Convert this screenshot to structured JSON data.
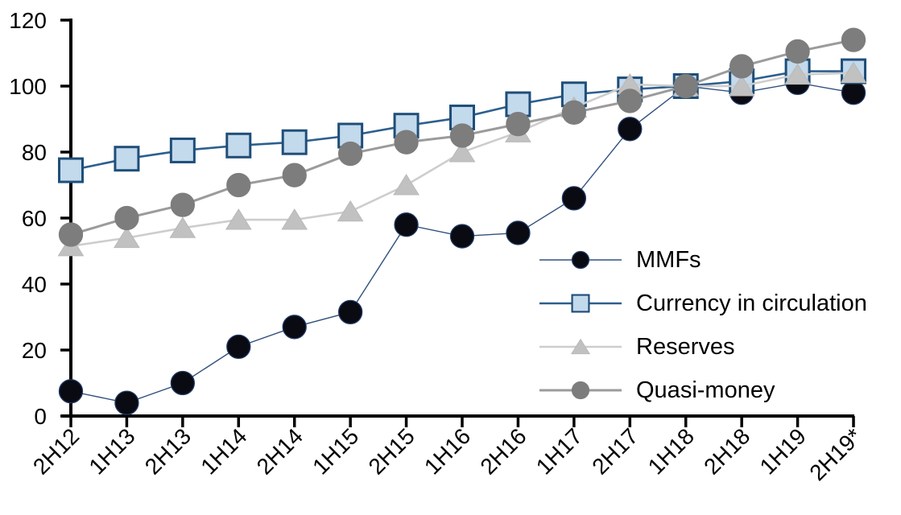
{
  "chart_data": {
    "type": "line",
    "title": "",
    "xlabel": "",
    "ylabel": "",
    "categories": [
      "2H12",
      "1H13",
      "2H13",
      "1H14",
      "2H14",
      "1H15",
      "2H15",
      "1H16",
      "2H16",
      "1H17",
      "2H17",
      "1H18",
      "2H18",
      "1H19",
      "2H19*"
    ],
    "series": [
      {
        "name": "MMFs",
        "marker": "circle",
        "marker_fill": "#0a0a12",
        "marker_stroke": "#1f3864",
        "line_color": "#31517e",
        "line_width": 1.4,
        "values": [
          7.5,
          4,
          10,
          21,
          27,
          31.5,
          58,
          54.5,
          55.5,
          66,
          87,
          100,
          98,
          101,
          98
        ]
      },
      {
        "name": "Currency in circulation",
        "marker": "square",
        "marker_fill": "#c3d9ec",
        "marker_stroke": "#1f4e79",
        "line_color": "#2d5f8e",
        "line_width": 2.6,
        "values": [
          74.5,
          78,
          80.5,
          82,
          83,
          85,
          88,
          90.5,
          94.5,
          97.5,
          99,
          100,
          101.5,
          104.5,
          104.5
        ]
      },
      {
        "name": "Reserves",
        "marker": "triangle",
        "marker_fill": "#c1c1c1",
        "marker_stroke": "#b9b9b9",
        "line_color": "#cdcdcd",
        "line_width": 2.6,
        "values": [
          51.5,
          54,
          57,
          59.5,
          59.5,
          62,
          70,
          80,
          86,
          93.5,
          100.5,
          100,
          100,
          103.5,
          104
        ]
      },
      {
        "name": "Quasi-money",
        "marker": "circle",
        "marker_fill": "#7d7d7d",
        "marker_stroke": "#7d7d7d",
        "line_color": "#9b9b9b",
        "line_width": 3,
        "values": [
          55,
          60,
          64,
          70,
          73,
          79.5,
          83,
          85,
          88.5,
          92,
          95.5,
          100,
          106,
          110.5,
          114
        ]
      }
    ],
    "ylim": [
      0,
      120
    ],
    "yticks": [
      0,
      20,
      40,
      60,
      80,
      100,
      120
    ],
    "grid": false,
    "legend_position": "inside-right",
    "axis_color": "#000000",
    "background": "#ffffff"
  }
}
